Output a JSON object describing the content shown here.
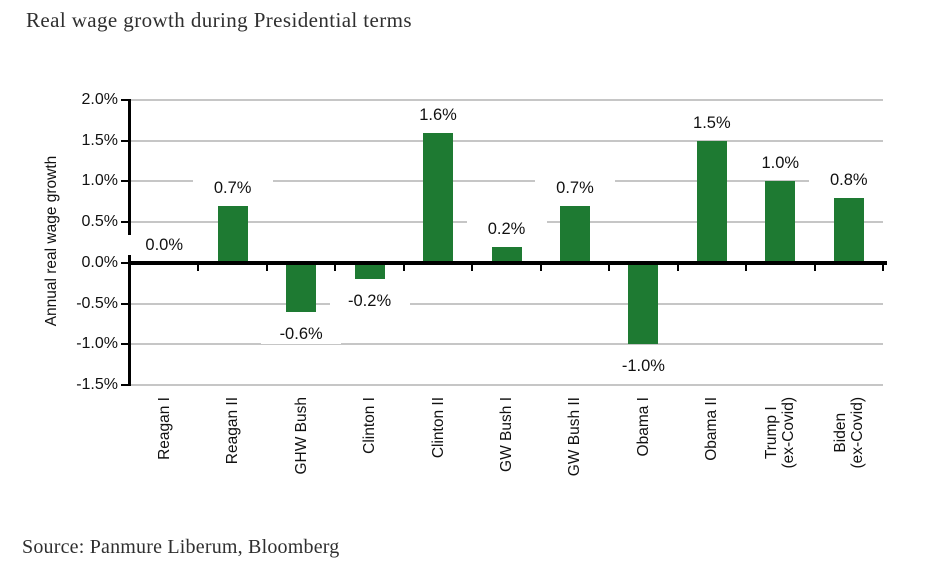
{
  "page": {
    "title": "Real wage growth during Presidential terms",
    "source": "Source: Panmure Liberum, Bloomberg"
  },
  "chart_data": {
    "type": "bar",
    "title": "Real wage growth during Presidential terms",
    "xlabel": "",
    "ylabel": "Annual real wage growth",
    "categories": [
      "Reagan I",
      "Reagan II",
      "GHW Bush",
      "Clinton I",
      "Clinton II",
      "GW Bush I",
      "GW Bush II",
      "Obama I",
      "Obama II",
      "Trump I (ex-Covid)",
      "Biden (ex-Covid)"
    ],
    "category_lines": [
      [
        "Reagan I"
      ],
      [
        "Reagan II"
      ],
      [
        "GHW Bush"
      ],
      [
        "Clinton I"
      ],
      [
        "Clinton II"
      ],
      [
        "GW Bush I"
      ],
      [
        "GW Bush II"
      ],
      [
        "Obama I"
      ],
      [
        "Obama II"
      ],
      [
        "Trump I",
        "(ex-Covid)"
      ],
      [
        "Biden",
        "(ex-Covid)"
      ]
    ],
    "values": [
      0.0,
      0.7,
      -0.6,
      -0.2,
      1.6,
      0.2,
      0.7,
      -1.0,
      1.5,
      1.0,
      0.8
    ],
    "data_labels": [
      "0.0%",
      "0.7%",
      "-0.6%",
      "-0.2%",
      "1.6%",
      "0.2%",
      "0.7%",
      "-1.0%",
      "1.5%",
      "1.0%",
      "0.8%"
    ],
    "yticks": [
      2.0,
      1.5,
      1.0,
      0.5,
      0.0,
      -0.5,
      -1.0,
      -1.5
    ],
    "ytick_labels": [
      "2.0%",
      "1.5%",
      "1.0%",
      "0.5%",
      "0.0%",
      "-0.5%",
      "-1.0%",
      "-1.5%"
    ],
    "ylim": [
      -1.5,
      2.0
    ],
    "grid": true,
    "legend": false,
    "colors": {
      "bar": "#1e7a32",
      "gridline": "#c6c6c6",
      "axis": "#000000",
      "text": "#111111"
    }
  }
}
